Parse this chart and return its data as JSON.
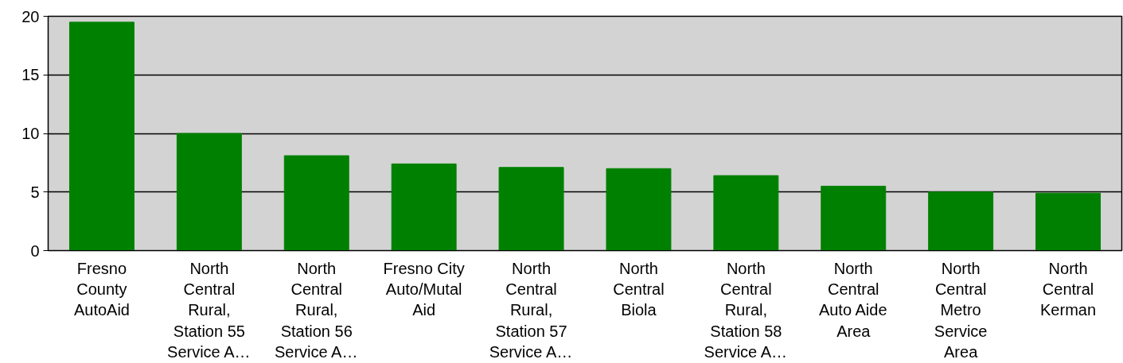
{
  "chart_data": {
    "type": "bar",
    "categories": [
      "Fresno County AutoAid",
      "North Central Rural, Station 55 Service A…",
      "North Central Rural, Station 56 Service A…",
      "Fresno City Auto/Mutal Aid",
      "North Central Rural, Station 57 Service A…",
      "North Central Biola",
      "North Central Rural, Station 58 Service A…",
      "North Central Auto Aide Area",
      "North Central Metro Service Area",
      "North Central Kerman"
    ],
    "values": [
      19.5,
      10.0,
      8.1,
      7.4,
      7.1,
      7.0,
      6.4,
      5.5,
      5.0,
      4.9
    ],
    "color": "#008000",
    "ylim": [
      0,
      20
    ],
    "yticks": [
      0,
      5,
      10,
      15,
      20
    ],
    "grid": "y"
  }
}
